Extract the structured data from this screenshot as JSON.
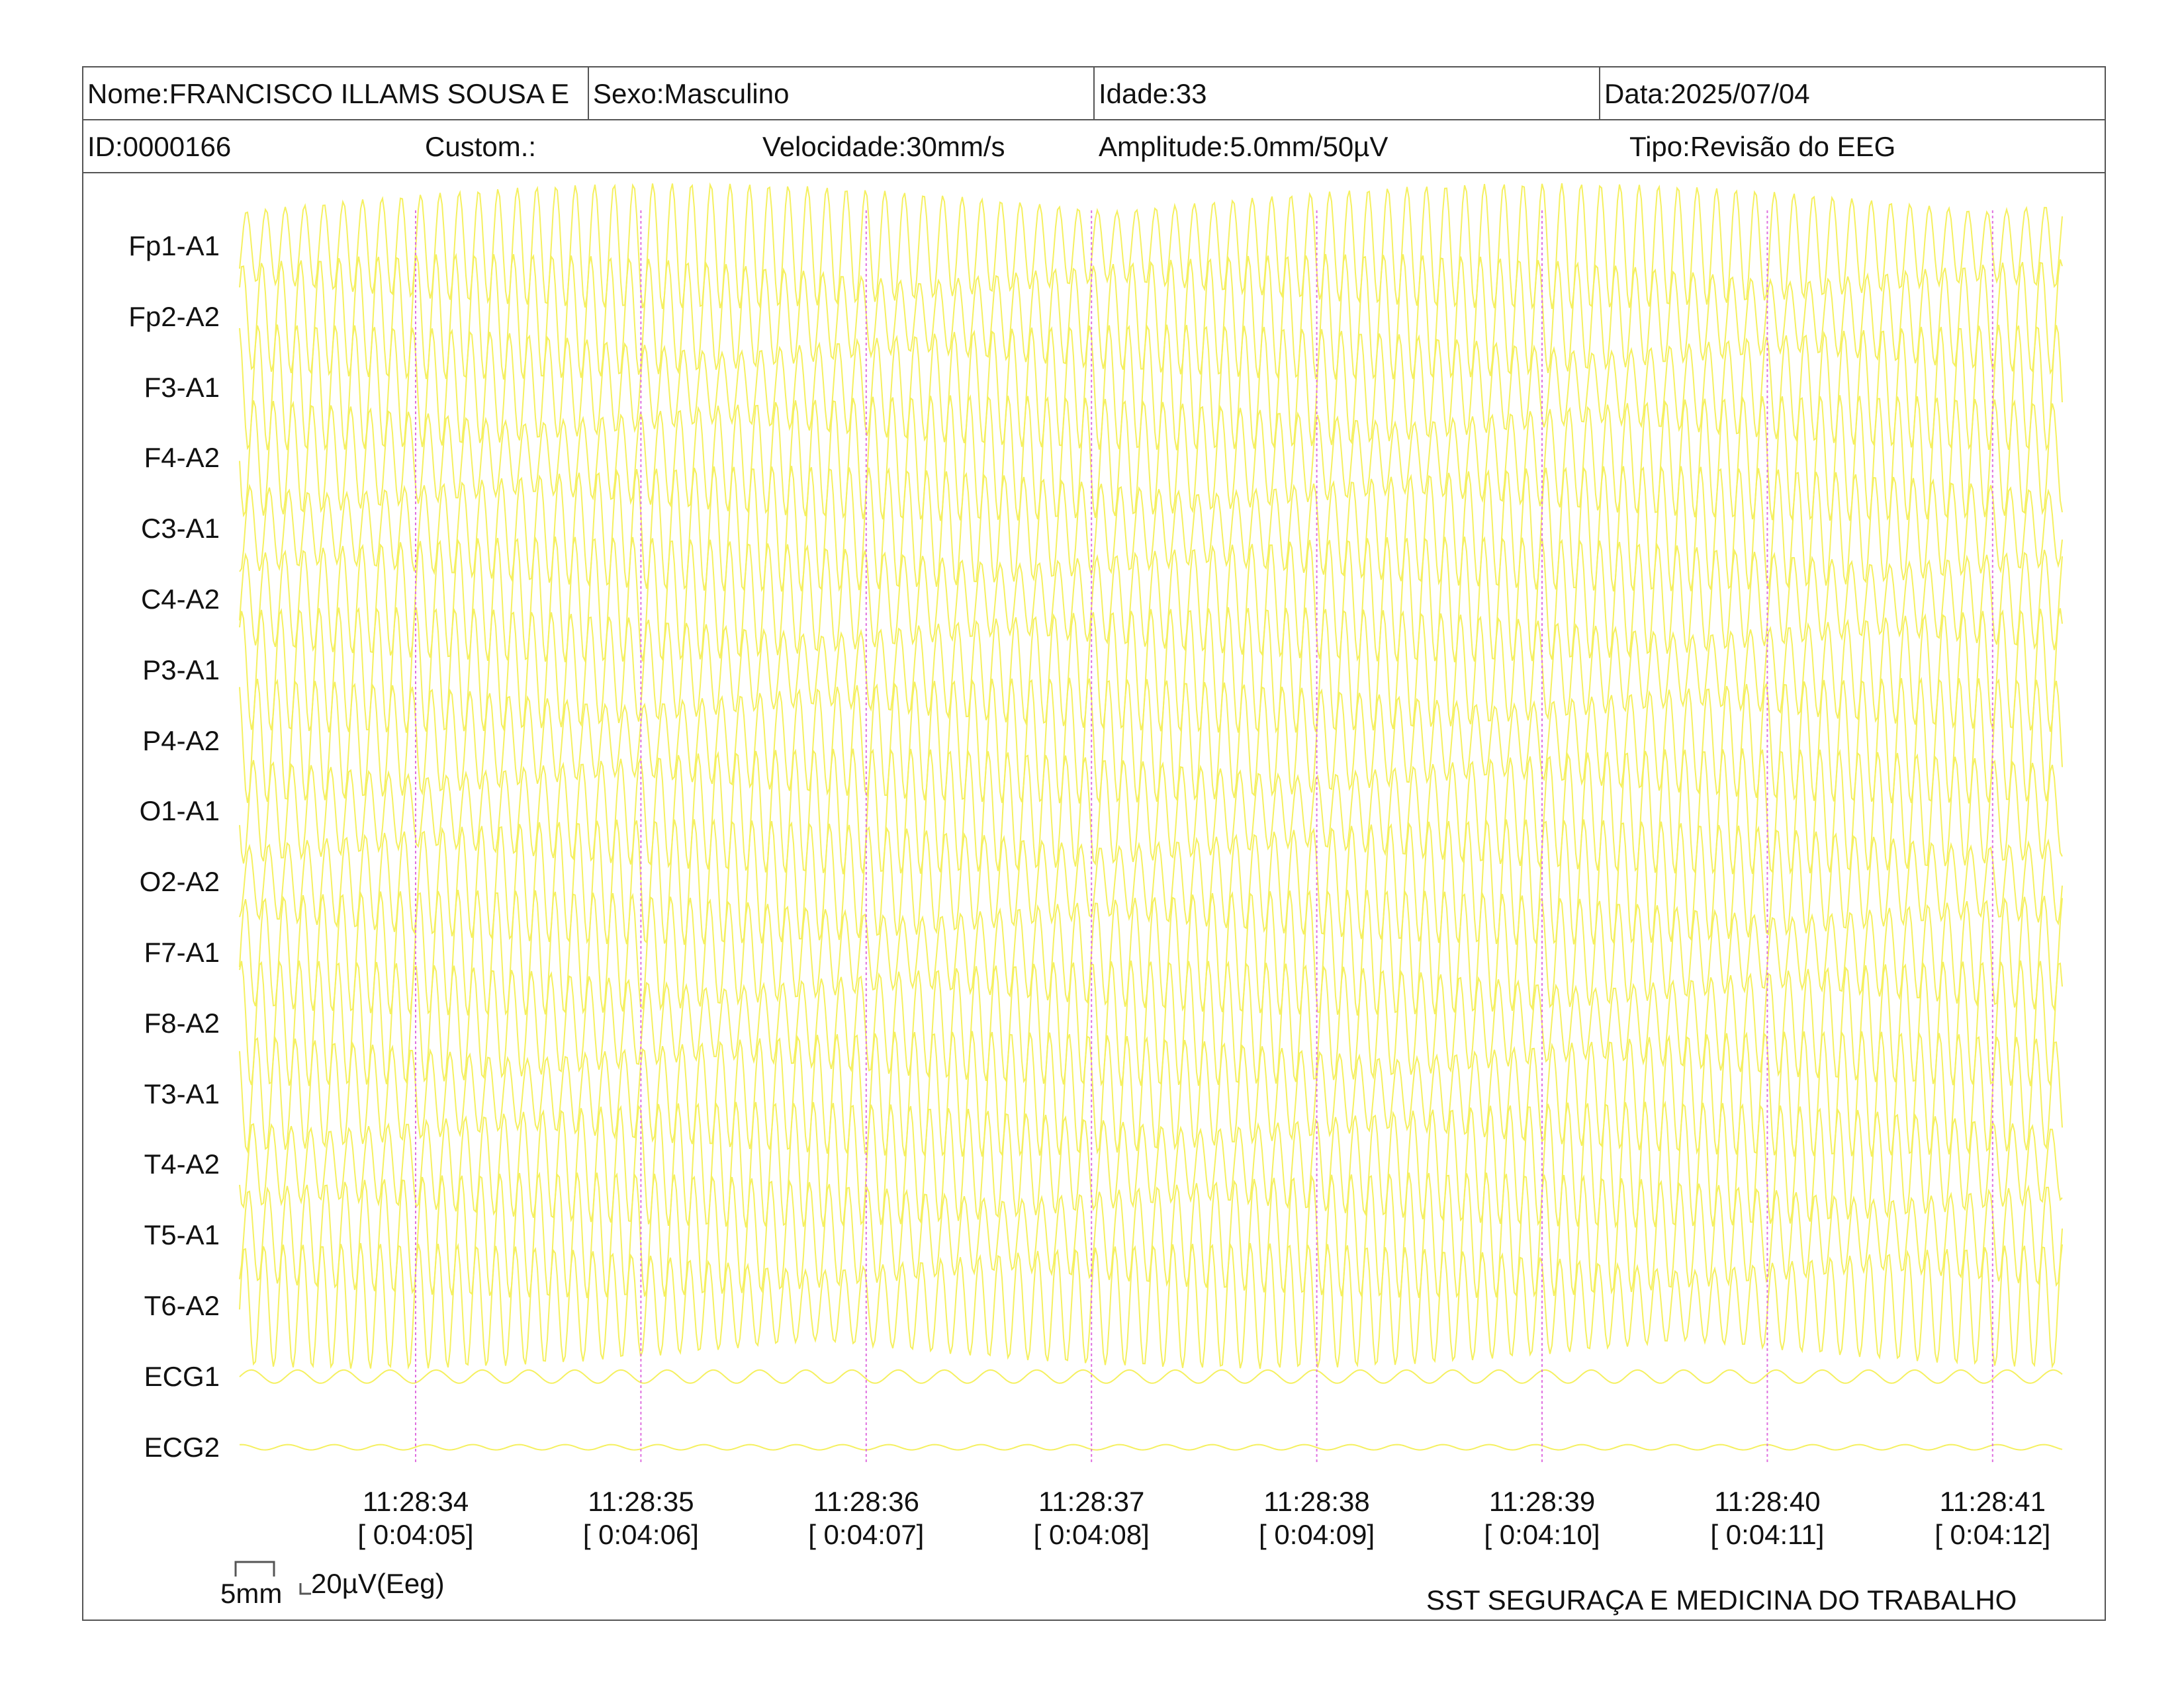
{
  "header": {
    "nome": "Nome:FRANCISCO ILLAMS SOUSA E",
    "sexo": "Sexo:Masculino",
    "idade": "Idade:33",
    "data": "Data:2025/07/04",
    "id": "ID:0000166",
    "custom": "Custom.:",
    "velocidade": "Velocidade:30mm/s",
    "amplitude": "Amplitude:5.0mm/50µV",
    "tipo": "Tipo:Revisão do EEG"
  },
  "channels": [
    "Fp1-A1",
    "Fp2-A2",
    "F3-A1",
    "F4-A2",
    "C3-A1",
    "C4-A2",
    "P3-A1",
    "P4-A2",
    "O1-A1",
    "O2-A2",
    "F7-A1",
    "F8-A2",
    "T3-A1",
    "T4-A2",
    "T5-A1",
    "T6-A2",
    "ECG1",
    "ECG2"
  ],
  "time_marks": [
    {
      "clock": "11:28:34",
      "elapsed": "[ 0:04:05]"
    },
    {
      "clock": "11:28:35",
      "elapsed": "[ 0:04:06]"
    },
    {
      "clock": "11:28:36",
      "elapsed": "[ 0:04:07]"
    },
    {
      "clock": "11:28:37",
      "elapsed": "[ 0:04:08]"
    },
    {
      "clock": "11:28:38",
      "elapsed": "[ 0:04:09]"
    },
    {
      "clock": "11:28:39",
      "elapsed": "[ 0:04:10]"
    },
    {
      "clock": "11:28:40",
      "elapsed": "[ 0:04:11]"
    },
    {
      "clock": "11:28:41",
      "elapsed": "[ 0:04:12]"
    }
  ],
  "scale": {
    "time_label": "5mm",
    "amp_label": "20µV(Eeg)"
  },
  "footer": {
    "institution": "SST SEGURAÇA E MEDICINA DO TRABALHO"
  },
  "colors": {
    "trace": "#f5f060",
    "marker": "#e070e0",
    "border": "#555555"
  }
}
